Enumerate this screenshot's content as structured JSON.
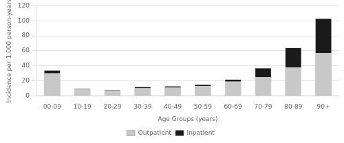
{
  "chart_data": {
    "type": "bar",
    "stacked": true,
    "categories": [
      "00-09",
      "10-19",
      "20-29",
      "30-39",
      "40-49",
      "50-59",
      "60-69",
      "70-79",
      "80-89",
      "90+"
    ],
    "series": [
      {
        "name": "Outpatient",
        "color": "#c8c8c8",
        "values": [
          30,
          9,
          7,
          10,
          11,
          13,
          19,
          25,
          38,
          57
        ]
      },
      {
        "name": "Inpatient",
        "color": "#1a1a1a",
        "values": [
          4,
          1,
          1,
          2,
          2,
          2,
          3,
          12,
          26,
          46
        ]
      }
    ],
    "xlabel": "Age Groups (years)",
    "ylabel": "Incidence per 1,000 person-years",
    "ylim": [
      0,
      120
    ],
    "yticks": [
      0,
      20,
      40,
      60,
      80,
      100,
      120
    ],
    "grid": true,
    "legend": "bottom"
  }
}
